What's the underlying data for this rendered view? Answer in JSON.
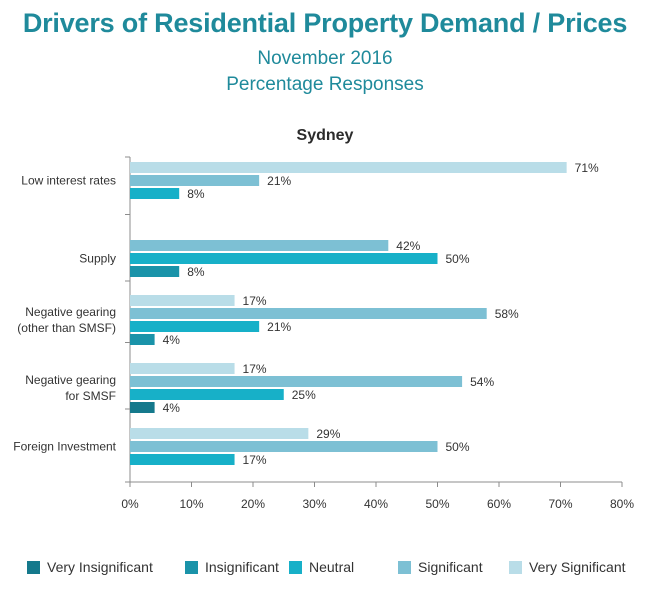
{
  "header": {
    "title": "Drivers of Residential Property Demand / Prices",
    "subtitle_1": "November 2016",
    "subtitle_2": "Percentage Responses"
  },
  "chart_data": {
    "type": "bar",
    "orientation": "horizontal",
    "title": "Sydney",
    "xlim": [
      0,
      80
    ],
    "x_ticks": [
      "0%",
      "10%",
      "20%",
      "30%",
      "40%",
      "50%",
      "60%",
      "70%",
      "80%"
    ],
    "categories": [
      [
        "Low interest rates"
      ],
      [
        "Supply"
      ],
      [
        "Negative gearing",
        "(other than SMSF)"
      ],
      [
        "Negative gearing",
        "for SMSF"
      ],
      [
        "Foreign Investment"
      ]
    ],
    "series": [
      {
        "name": "Very Significant",
        "color": "#b9dde8",
        "values": [
          71,
          0,
          17,
          17,
          29
        ],
        "labels": [
          "71%",
          "",
          "17%",
          "17%",
          "29%"
        ]
      },
      {
        "name": "Significant",
        "color": "#7dc0d4",
        "values": [
          21,
          42,
          58,
          54,
          50
        ],
        "labels": [
          "21%",
          "42%",
          "58%",
          "54%",
          "50%"
        ]
      },
      {
        "name": "Neutral",
        "color": "#17b0c8",
        "values": [
          8,
          50,
          21,
          25,
          17
        ],
        "labels": [
          "8%",
          "50%",
          "21%",
          "25%",
          "17%"
        ]
      },
      {
        "name": "Insignificant",
        "color": "#1a93a9",
        "values": [
          0,
          8,
          4,
          0,
          0
        ],
        "labels": [
          "",
          "8%",
          "4%",
          "",
          ""
        ]
      },
      {
        "name": "Very Insignificant",
        "color": "#15798c",
        "values": [
          0,
          0,
          0,
          4,
          0
        ],
        "labels": [
          "",
          "",
          "",
          "4%",
          ""
        ]
      }
    ],
    "legend": {
      "position": "bottom",
      "entries": [
        "Very Insignificant",
        "Insignificant",
        "Neutral",
        "Significant",
        "Very Significant"
      ]
    }
  }
}
